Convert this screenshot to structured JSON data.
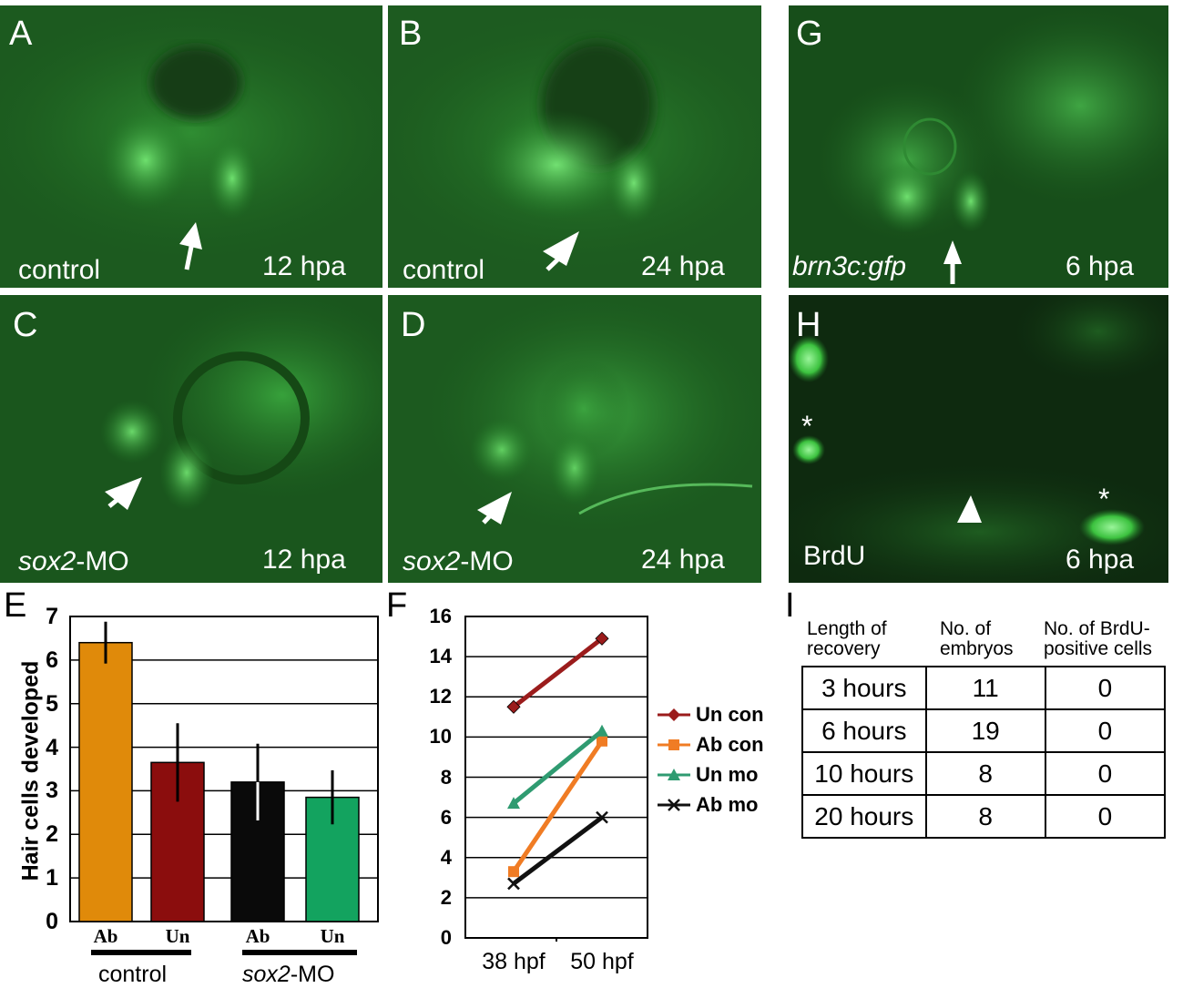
{
  "panels": {
    "A": {
      "label": "A",
      "caption": "control",
      "time": "12 hpa"
    },
    "B": {
      "label": "B",
      "caption": "control",
      "time": "24 hpa"
    },
    "C": {
      "label": "C",
      "caption_italic": "sox2",
      "caption_rest": "-MO",
      "time": "12 hpa"
    },
    "D": {
      "label": "D",
      "caption_italic": "sox2",
      "caption_rest": "-MO",
      "time": "24 hpa"
    },
    "G": {
      "label": "G",
      "caption_italic": "brn3c:gfp",
      "time": "6 hpa"
    },
    "H": {
      "label": "H",
      "caption": "BrdU",
      "time": "6 hpa",
      "asterisk": "*"
    }
  },
  "chart_E": {
    "label": "E",
    "type": "bar",
    "ylabel": "Hair cells developed",
    "ylim": [
      0,
      7
    ],
    "yticks": [
      "0",
      "1",
      "2",
      "3",
      "4",
      "5",
      "6",
      "7"
    ],
    "categories": [
      "Ab",
      "Un",
      "Ab",
      "Un"
    ],
    "values": [
      6.4,
      3.65,
      3.2,
      2.85
    ],
    "errors": [
      0.48,
      0.9,
      0.88,
      0.62
    ],
    "colors": [
      "#e08a0a",
      "#8b0d0d",
      "#0a0a0a",
      "#13a35f"
    ],
    "groups": [
      {
        "label": "control"
      },
      {
        "label_italic": "sox2",
        "label_rest": "-MO"
      }
    ]
  },
  "chart_F": {
    "label": "F",
    "type": "line",
    "x": [
      "38 hpf",
      "50 hpf"
    ],
    "ylim": [
      0,
      16
    ],
    "yticks": [
      "0",
      "2",
      "4",
      "6",
      "8",
      "10",
      "12",
      "14",
      "16"
    ],
    "series": [
      {
        "name": "Un con",
        "values": [
          11.5,
          14.9
        ],
        "color": "#9b1c1c",
        "marker": "diamond"
      },
      {
        "name": "Ab con",
        "values": [
          3.3,
          9.8
        ],
        "color": "#f07c24",
        "marker": "square"
      },
      {
        "name": "Un mo",
        "values": [
          6.7,
          10.3
        ],
        "color": "#2f9b71",
        "marker": "triangle"
      },
      {
        "name": "Ab mo",
        "values": [
          2.7,
          6.0
        ],
        "color": "#111111",
        "marker": "x"
      }
    ]
  },
  "table_I": {
    "label": "I",
    "headers": [
      "Length of recovery",
      "No. of embryos",
      "No. of BrdU-positive cells"
    ],
    "rows": [
      [
        "3 hours",
        "11",
        "0"
      ],
      [
        "6 hours",
        "19",
        "0"
      ],
      [
        "10 hours",
        "8",
        "0"
      ],
      [
        "20 hours",
        "8",
        "0"
      ]
    ]
  }
}
